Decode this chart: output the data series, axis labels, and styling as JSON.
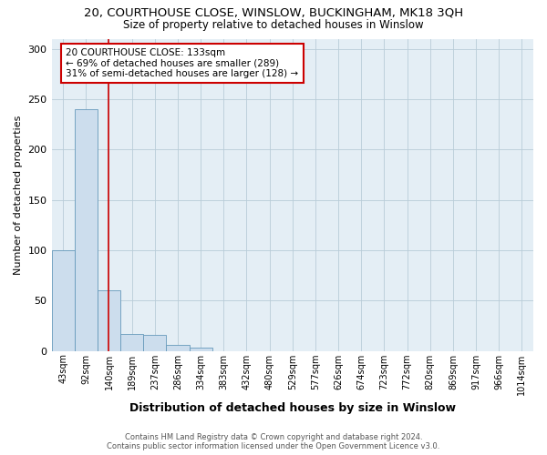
{
  "title": "20, COURTHOUSE CLOSE, WINSLOW, BUCKINGHAM, MK18 3QH",
  "subtitle": "Size of property relative to detached houses in Winslow",
  "xlabel": "Distribution of detached houses by size in Winslow",
  "ylabel": "Number of detached properties",
  "bar_labels": [
    "43sqm",
    "92sqm",
    "140sqm",
    "189sqm",
    "237sqm",
    "286sqm",
    "334sqm",
    "383sqm",
    "432sqm",
    "480sqm",
    "529sqm",
    "577sqm",
    "626sqm",
    "674sqm",
    "723sqm",
    "772sqm",
    "820sqm",
    "869sqm",
    "917sqm",
    "966sqm",
    "1014sqm"
  ],
  "bar_values": [
    100,
    240,
    60,
    17,
    16,
    6,
    3,
    0,
    0,
    0,
    0,
    0,
    0,
    0,
    0,
    0,
    0,
    0,
    0,
    0,
    0
  ],
  "bar_color": "#ccdded",
  "bar_edge_color": "#6699bb",
  "red_line_color": "#cc0000",
  "annotation_text_line1": "20 COURTHOUSE CLOSE: 133sqm",
  "annotation_text_line2": "← 69% of detached houses are smaller (289)",
  "annotation_text_line3": "31% of semi-detached houses are larger (128) →",
  "ylim": [
    0,
    310
  ],
  "yticks": [
    0,
    50,
    100,
    150,
    200,
    250,
    300
  ],
  "footer_line1": "Contains HM Land Registry data © Crown copyright and database right 2024.",
  "footer_line2": "Contains public sector information licensed under the Open Government Licence v3.0.",
  "bg_color": "#ffffff",
  "plot_bg_color": "#e4eef5",
  "grid_color": "#b8ccd8",
  "title_fontsize": 9.5,
  "subtitle_fontsize": 8.5,
  "xlabel_fontsize": 9,
  "ylabel_fontsize": 8,
  "tick_fontsize": 7,
  "annot_fontsize": 7.5,
  "footer_fontsize": 6
}
